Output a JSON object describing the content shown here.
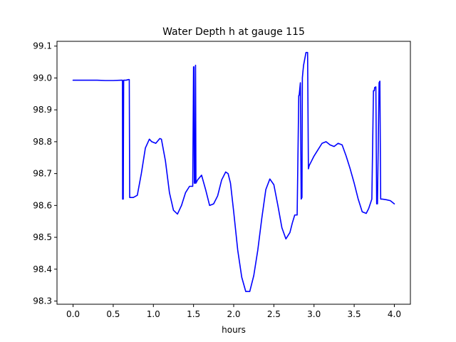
{
  "chart_data": {
    "type": "line",
    "title": "Water Depth h at gauge 115",
    "xlabel": "hours",
    "ylabel": "",
    "xlim": [
      -0.2,
      4.2
    ],
    "ylim": [
      98.29,
      99.115
    ],
    "xticks": [
      0.0,
      0.5,
      1.0,
      1.5,
      2.0,
      2.5,
      3.0,
      3.5,
      4.0
    ],
    "xtick_labels": [
      "0.0",
      "0.5",
      "1.0",
      "1.5",
      "2.0",
      "2.5",
      "3.0",
      "3.5",
      "4.0"
    ],
    "yticks": [
      98.3,
      98.4,
      98.5,
      98.6,
      98.7,
      98.8,
      98.9,
      99.0,
      99.1
    ],
    "ytick_labels": [
      "98.3",
      "98.4",
      "98.5",
      "98.6",
      "98.7",
      "98.8",
      "98.9",
      "99.0",
      "99.1"
    ],
    "grid": false,
    "series": [
      {
        "name": "",
        "color": "#0000ff",
        "x": [
          0.0,
          0.1,
          0.2,
          0.3,
          0.4,
          0.5,
          0.6,
          0.615,
          0.617,
          0.625,
          0.63,
          0.66,
          0.69,
          0.7,
          0.705,
          0.75,
          0.8,
          0.85,
          0.9,
          0.95,
          0.98,
          1.03,
          1.08,
          1.1,
          1.15,
          1.2,
          1.25,
          1.3,
          1.35,
          1.4,
          1.45,
          1.49,
          1.5,
          1.505,
          1.51,
          1.52,
          1.525,
          1.53,
          1.55,
          1.6,
          1.65,
          1.7,
          1.75,
          1.8,
          1.85,
          1.9,
          1.93,
          1.96,
          2.0,
          2.05,
          2.1,
          2.15,
          2.2,
          2.25,
          2.3,
          2.35,
          2.4,
          2.45,
          2.5,
          2.55,
          2.6,
          2.65,
          2.7,
          2.73,
          2.76,
          2.79,
          2.81,
          2.815,
          2.83,
          2.84,
          2.85,
          2.855,
          2.86,
          2.87,
          2.9,
          2.92,
          2.93,
          2.94,
          3.0,
          3.05,
          3.1,
          3.15,
          3.2,
          3.25,
          3.3,
          3.35,
          3.4,
          3.45,
          3.5,
          3.55,
          3.6,
          3.65,
          3.68,
          3.72,
          3.74,
          3.75,
          3.755,
          3.77,
          3.78,
          3.79,
          3.81,
          3.82,
          3.83,
          3.85,
          3.9,
          3.95,
          4.0
        ],
        "y": [
          98.993,
          98.993,
          98.993,
          98.993,
          98.992,
          98.992,
          98.993,
          98.993,
          98.62,
          98.62,
          98.993,
          98.993,
          98.995,
          98.995,
          98.625,
          98.625,
          98.632,
          98.7,
          98.78,
          98.808,
          98.8,
          98.795,
          98.81,
          98.808,
          98.74,
          98.64,
          98.585,
          98.573,
          98.6,
          98.64,
          98.66,
          98.66,
          99.035,
          99.035,
          98.67,
          98.67,
          99.04,
          98.67,
          98.68,
          98.695,
          98.65,
          98.6,
          98.605,
          98.63,
          98.68,
          98.705,
          98.7,
          98.67,
          98.58,
          98.46,
          98.375,
          98.33,
          98.33,
          98.38,
          98.46,
          98.56,
          98.65,
          98.683,
          98.665,
          98.6,
          98.53,
          98.495,
          98.515,
          98.545,
          98.57,
          98.57,
          98.945,
          98.945,
          98.985,
          98.62,
          98.625,
          99.0,
          99.015,
          99.04,
          99.08,
          99.08,
          98.715,
          98.725,
          98.755,
          98.775,
          98.795,
          98.8,
          98.79,
          98.785,
          98.795,
          98.79,
          98.755,
          98.715,
          98.67,
          98.62,
          98.58,
          98.575,
          98.59,
          98.62,
          98.96,
          98.96,
          98.97,
          98.972,
          98.605,
          98.605,
          98.985,
          98.99,
          98.62,
          98.62,
          98.618,
          98.615,
          98.605
        ]
      }
    ]
  }
}
